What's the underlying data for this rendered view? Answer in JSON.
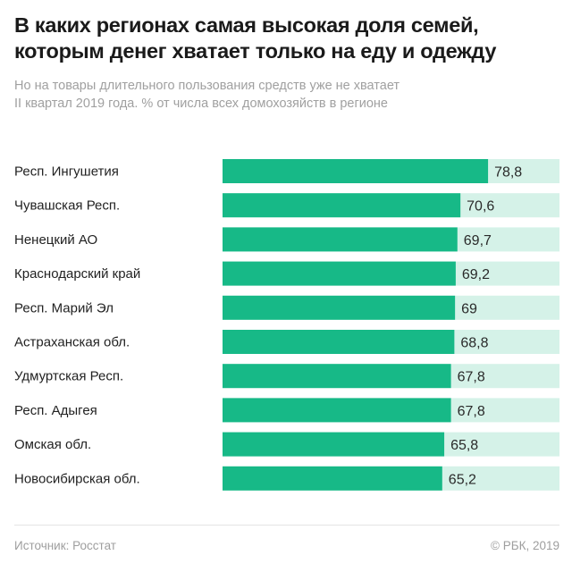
{
  "header": {
    "title_line1": "В каких регионах самая высокая доля семей,",
    "title_line2": "которым денег хватает только на еду и одежду",
    "subtitle_line1": "Но на товары длительного пользования средств уже не хватает",
    "subtitle_line2": "II квартал 2019 года. % от числа всех домохозяйств в регионе"
  },
  "footer": {
    "source": "Источник: Росстат",
    "copyright": "© РБК, 2019"
  },
  "colors": {
    "bar": "#17b987",
    "track": "#d5f2e8",
    "label": "#222222",
    "value": "#2a2a2a"
  },
  "chart_data": {
    "type": "bar",
    "orientation": "horizontal",
    "title": "В каких регионах самая высокая доля семей, которым денег хватает только на еду и одежду",
    "subtitle": "Но на товары длительного пользования средств уже не хватает. II квартал 2019 года. % от числа всех домохозяйств в регионе",
    "xlabel": "",
    "ylabel": "",
    "xlim": [
      0,
      100
    ],
    "grid": false,
    "legend": "none",
    "categories": [
      "Респ. Ингушетия",
      "Чувашская Респ.",
      "Ненецкий АО",
      "Краснодарский край",
      "Респ. Марий Эл",
      "Астраханская обл.",
      "Удмуртская Респ.",
      "Респ. Адыгея",
      "Омская обл.",
      "Новосибирская обл."
    ],
    "values": [
      78.8,
      70.6,
      69.7,
      69.2,
      69,
      68.8,
      67.8,
      67.8,
      65.8,
      65.2
    ],
    "value_labels": [
      "78,8",
      "70,6",
      "69,7",
      "69,2",
      "69",
      "68,8",
      "67,8",
      "67,8",
      "65,8",
      "65,2"
    ]
  }
}
